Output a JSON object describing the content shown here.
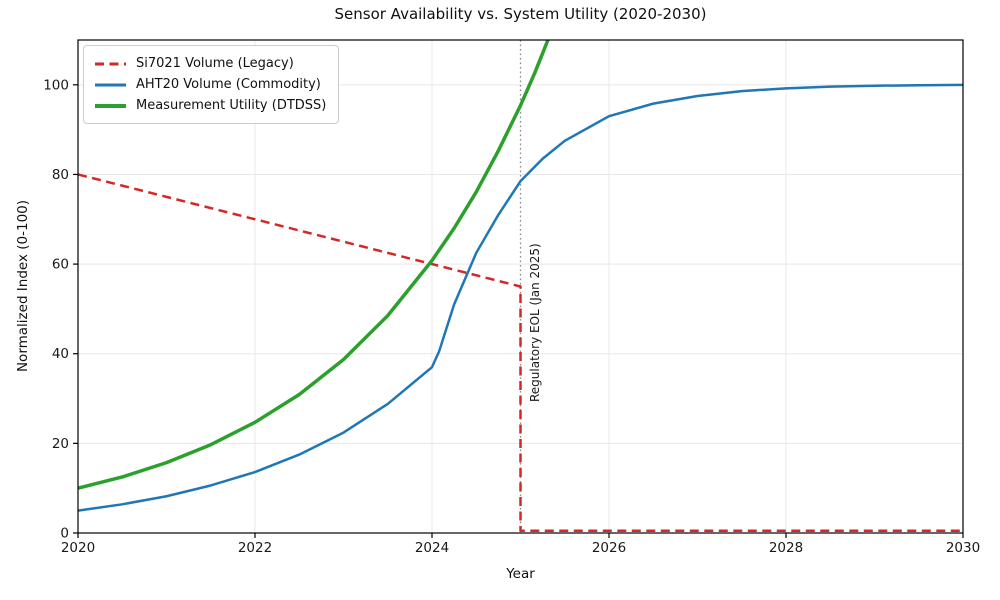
{
  "chart_data": {
    "type": "line",
    "title": "Sensor Availability vs. System Utility (2020-2030)",
    "xlabel": "Year",
    "ylabel": "Normalized Index (0-100)",
    "xlim": [
      2020,
      2030
    ],
    "ylim": [
      0,
      110
    ],
    "xticks": [
      2020,
      2022,
      2024,
      2026,
      2028,
      2030
    ],
    "yticks": [
      0,
      20,
      40,
      60,
      80,
      100
    ],
    "grid": true,
    "legend_position": "upper left",
    "series": [
      {
        "name": "Si7021 Volume (Legacy)",
        "color": "#d62728",
        "style": "dashed",
        "width": 2.5,
        "points": [
          [
            2020,
            80
          ],
          [
            2021,
            75
          ],
          [
            2022,
            70
          ],
          [
            2023,
            65
          ],
          [
            2024,
            60
          ],
          [
            2025,
            55
          ],
          [
            2025,
            0.5
          ],
          [
            2026,
            0.5
          ],
          [
            2027,
            0.5
          ],
          [
            2028,
            0.5
          ],
          [
            2029,
            0.5
          ],
          [
            2030,
            0.5
          ]
        ]
      },
      {
        "name": "AHT20 Volume (Commodity)",
        "color": "#1f77b4",
        "style": "solid",
        "width": 2.5,
        "points": [
          [
            2020,
            5
          ],
          [
            2020.5,
            6.4
          ],
          [
            2021,
            8.2
          ],
          [
            2021.5,
            10.6
          ],
          [
            2022,
            13.6
          ],
          [
            2022.5,
            17.5
          ],
          [
            2023,
            22.4
          ],
          [
            2023.5,
            28.8
          ],
          [
            2024,
            37
          ],
          [
            2024.08,
            40.5
          ],
          [
            2024.25,
            51
          ],
          [
            2024.5,
            62.5
          ],
          [
            2024.75,
            71
          ],
          [
            2025,
            78.5
          ],
          [
            2025.25,
            83.5
          ],
          [
            2025.5,
            87.5
          ],
          [
            2026,
            93
          ],
          [
            2026.5,
            95.8
          ],
          [
            2027,
            97.5
          ],
          [
            2027.5,
            98.6
          ],
          [
            2028,
            99.2
          ],
          [
            2028.5,
            99.6
          ],
          [
            2029,
            99.8
          ],
          [
            2029.5,
            99.9
          ],
          [
            2030,
            100
          ]
        ]
      },
      {
        "name": "Measurement Utility (DTDSS)",
        "color": "#2ca02c",
        "style": "solid",
        "width": 3.5,
        "points": [
          [
            2020,
            10
          ],
          [
            2020.5,
            12.5
          ],
          [
            2021,
            15.7
          ],
          [
            2021.5,
            19.7
          ],
          [
            2022,
            24.7
          ],
          [
            2022.5,
            30.9
          ],
          [
            2023,
            38.7
          ],
          [
            2023.5,
            48.5
          ],
          [
            2024,
            60.8
          ],
          [
            2024.25,
            68
          ],
          [
            2024.5,
            76.1
          ],
          [
            2024.75,
            85.3
          ],
          [
            2025,
            95.4
          ],
          [
            2025.16,
            102.6
          ],
          [
            2025.32,
            110.5
          ]
        ]
      }
    ],
    "annotations": [
      {
        "type": "vline",
        "x": 2025,
        "color": "#8a8a8a",
        "style": "dotted"
      },
      {
        "type": "text",
        "text": "Regulatory EOL (Jan 2025)",
        "x": 2025,
        "rotation": 90,
        "color": "#1a1a1a"
      }
    ],
    "colors": {
      "grid": "#e8e8e8",
      "spine": "#000000",
      "tick_label": "#1a1a1a"
    }
  }
}
